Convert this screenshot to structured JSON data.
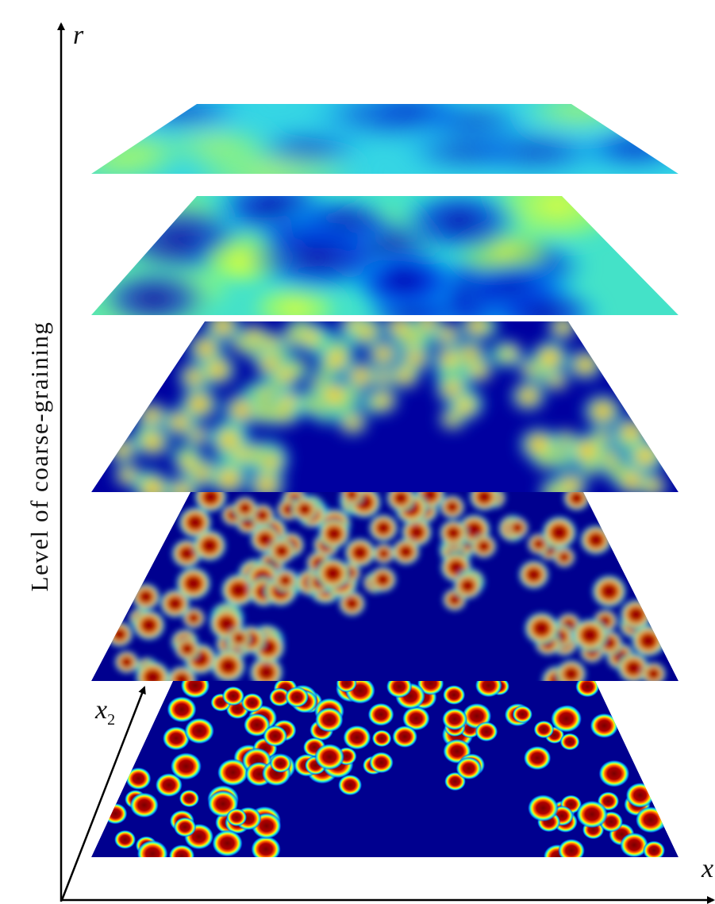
{
  "axes": {
    "vertical": {
      "label": "r"
    },
    "vertical_title": "Level of coarse-graining",
    "depth": {
      "label": "x",
      "subscript": "2"
    },
    "horizontal": {
      "label": "x"
    }
  }
}
